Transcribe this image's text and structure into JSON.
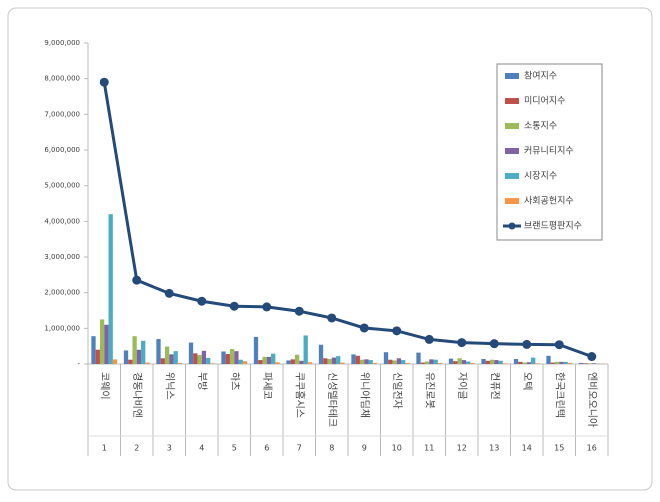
{
  "chart_data": {
    "type": "combo",
    "categories": [
      "코웨이",
      "경동나비엔",
      "위닉스",
      "부방",
      "하츠",
      "파세코",
      "쿠쿠홈시스",
      "신성델타테크",
      "위니아딤채",
      "신일전자",
      "유진로봇",
      "자이글",
      "컨퓨전",
      "오텍",
      "한국크린텍",
      "엔비오오니아"
    ],
    "category_numbers": [
      1,
      2,
      3,
      4,
      5,
      6,
      7,
      8,
      9,
      10,
      11,
      12,
      13,
      14,
      15,
      16
    ],
    "ylim": [
      0,
      9000000
    ],
    "yticks": [
      {
        "value": 0,
        "label": "-"
      },
      {
        "value": 1000000,
        "label": "1,000,000"
      },
      {
        "value": 2000000,
        "label": "2,000,000"
      },
      {
        "value": 3000000,
        "label": "3,000,000"
      },
      {
        "value": 4000000,
        "label": "4,000,000"
      },
      {
        "value": 5000000,
        "label": "5,000,000"
      },
      {
        "value": 6000000,
        "label": "6,000,000"
      },
      {
        "value": 7000000,
        "label": "7,000,000"
      },
      {
        "value": 8000000,
        "label": "8,000,000"
      },
      {
        "value": 9000000,
        "label": "9,000,000"
      }
    ],
    "grid": false,
    "legend": "right",
    "series": [
      {
        "name": "참여지수",
        "type": "bar",
        "color": "#4f81bd",
        "values": [
          780000,
          380000,
          700000,
          600000,
          350000,
          760000,
          100000,
          540000,
          270000,
          330000,
          320000,
          150000,
          140000,
          140000,
          230000,
          30000
        ]
      },
      {
        "name": "미디어지수",
        "type": "bar",
        "color": "#c0504d",
        "values": [
          400000,
          120000,
          160000,
          300000,
          280000,
          110000,
          130000,
          160000,
          230000,
          120000,
          40000,
          80000,
          90000,
          60000,
          40000,
          20000
        ]
      },
      {
        "name": "소통지수",
        "type": "bar",
        "color": "#9bbb59",
        "values": [
          1250000,
          780000,
          490000,
          250000,
          420000,
          200000,
          260000,
          140000,
          120000,
          100000,
          70000,
          160000,
          120000,
          40000,
          60000,
          20000
        ]
      },
      {
        "name": "커뮤니티지수",
        "type": "bar",
        "color": "#8064a2",
        "values": [
          1100000,
          400000,
          270000,
          370000,
          360000,
          200000,
          90000,
          180000,
          130000,
          160000,
          130000,
          110000,
          110000,
          50000,
          60000,
          20000
        ]
      },
      {
        "name": "시장지수",
        "type": "bar",
        "color": "#4bacc6",
        "values": [
          4200000,
          650000,
          360000,
          170000,
          120000,
          290000,
          800000,
          220000,
          110000,
          110000,
          120000,
          70000,
          90000,
          180000,
          60000,
          10000
        ]
      },
      {
        "name": "사회공헌지수",
        "type": "bar",
        "color": "#f79646",
        "values": [
          130000,
          40000,
          30000,
          20000,
          80000,
          50000,
          50000,
          40000,
          30000,
          30000,
          30000,
          30000,
          20000,
          20000,
          30000,
          10000
        ]
      },
      {
        "name": "브랜드평판지수",
        "type": "line",
        "color": "#244a7a",
        "values": [
          7900000,
          2350000,
          1980000,
          1760000,
          1620000,
          1600000,
          1480000,
          1290000,
          1010000,
          930000,
          690000,
          600000,
          570000,
          550000,
          540000,
          210000
        ]
      }
    ]
  }
}
